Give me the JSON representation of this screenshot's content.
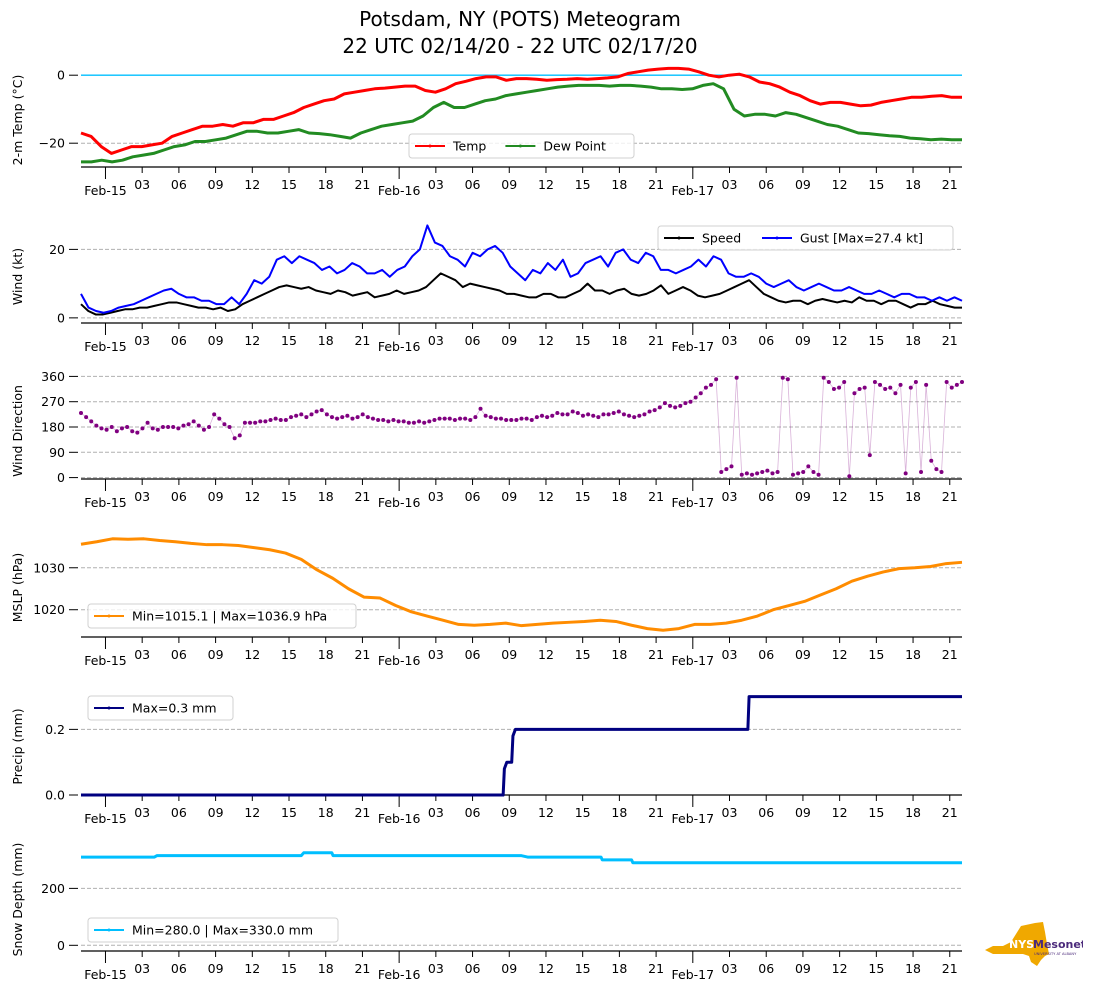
{
  "title_line1": "Potsdam, NY (POTS) Meteogram",
  "title_line2": "22 UTC 02/14/20 - 22 UTC 02/17/20",
  "logo": {
    "text_main": "NYS",
    "text_brand": "Mesonet",
    "text_sub": "UNIVERSITY AT ALBANY",
    "color_state": "#F0A800",
    "color_brand": "#4B2A7B"
  },
  "chart_data": [
    {
      "type": "line",
      "panel": "temperature",
      "ylabel": "2-m Temp ($^\\circ$C)",
      "ylabel_display": "2-m Temp (°C)",
      "ylim": [
        -27,
        3
      ],
      "yticks": [
        0,
        -20
      ],
      "ytick_labels": [
        "0",
        "−20"
      ],
      "grid_y": [
        -20
      ],
      "reference_line": {
        "y": 0,
        "color": "#00BFFF"
      },
      "x_hours_range": [
        0,
        72
      ],
      "x_start": "22 UTC 02/14/20",
      "xticks_hours": [
        2,
        5,
        8,
        11,
        14,
        17,
        20,
        23,
        26,
        29,
        32,
        35,
        38,
        41,
        44,
        47,
        50,
        53,
        56,
        59,
        62,
        65,
        68,
        71
      ],
      "xtick_labels": [
        "Feb-15",
        "03",
        "06",
        "09",
        "12",
        "15",
        "18",
        "21",
        "Feb-16",
        "03",
        "06",
        "09",
        "12",
        "15",
        "18",
        "21",
        "Feb-17",
        "03",
        "06",
        "09",
        "12",
        "15",
        "18",
        "21"
      ],
      "legend": {
        "placement": "lower-center",
        "ncol": 2,
        "entries": [
          "Temp",
          "Dew Point"
        ]
      },
      "x": [
        0,
        1,
        2,
        3,
        4,
        5,
        6,
        7,
        8,
        9,
        10,
        11,
        12,
        13,
        14,
        15,
        16,
        17,
        18,
        19,
        20,
        21,
        22,
        23,
        24,
        25,
        26,
        27,
        28,
        29,
        30,
        31,
        32,
        33,
        34,
        35,
        36,
        37,
        38,
        39,
        40,
        41,
        42,
        43,
        44,
        45,
        46,
        47,
        48,
        49,
        50,
        51,
        52,
        53,
        54,
        55,
        56,
        57,
        58,
        59,
        60,
        61,
        62,
        63,
        64,
        65,
        66,
        67,
        68,
        69,
        70,
        71,
        72
      ],
      "series": [
        {
          "name": "Temp",
          "color": "#FF0000",
          "values": [
            -17,
            -18,
            -21,
            -23,
            -22,
            -21,
            -21,
            -20.5,
            -20,
            -18,
            -17,
            -16,
            -15,
            -15,
            -14.5,
            -15,
            -14,
            -14,
            -13,
            -13,
            -12,
            -11,
            -9.5,
            -8.5,
            -7.5,
            -7,
            -5.5,
            -5,
            -4.5,
            -4,
            -3.8,
            -3.5,
            -3.2,
            -3.2,
            -4.5,
            -5,
            -4,
            -2.5,
            -1.8,
            -1,
            -0.5,
            -0.5,
            -1.5,
            -1,
            -1,
            -1.2,
            -1.5,
            -1.3,
            -1.2,
            -1,
            -1.2,
            -1,
            -0.8,
            -0.5,
            0.5,
            1,
            1.5,
            1.8,
            2,
            2,
            1.8,
            1,
            0,
            -0.5,
            0,
            0.3,
            -0.5,
            -2,
            -2.5,
            -3.5,
            -5,
            -6,
            -7.5,
            -8.5,
            -8,
            -8,
            -8.5,
            -9,
            -8.8,
            -8,
            -7.5,
            -7,
            -6.5,
            -6.5,
            -6.2,
            -6,
            -6.5,
            -6.5
          ],
          "sample_step_hours": 0.8333
        },
        {
          "name": "Dew Point",
          "color": "#228B22",
          "values": [
            -25.5,
            -25.5,
            -25,
            -25.5,
            -25,
            -24,
            -23.5,
            -23,
            -22,
            -21,
            -20.5,
            -19.5,
            -19.5,
            -19,
            -18.5,
            -17.5,
            -16.5,
            -16.5,
            -17,
            -17,
            -16.5,
            -16,
            -17,
            -17.2,
            -17.5,
            -18,
            -18.5,
            -17,
            -16,
            -15,
            -14.5,
            -14,
            -13.5,
            -12,
            -9.5,
            -8,
            -9.5,
            -9.5,
            -8.5,
            -7.5,
            -7,
            -6,
            -5.5,
            -5,
            -4.5,
            -4,
            -3.5,
            -3.2,
            -3,
            -3,
            -3,
            -3.2,
            -3,
            -3,
            -3.2,
            -3.5,
            -4,
            -4,
            -4.2,
            -4,
            -3,
            -2.5,
            -4,
            -10,
            -12,
            -11.5,
            -11.5,
            -12,
            -11,
            -11.5,
            -12.5,
            -13.5,
            -14.5,
            -15,
            -16,
            -17,
            -17.2,
            -17.5,
            -17.8,
            -18,
            -18.5,
            -18.7,
            -19,
            -18.8,
            -19,
            -19
          ],
          "sample_step_hours": 0.8333
        }
      ]
    },
    {
      "type": "line",
      "panel": "wind",
      "ylabel": "Wind (kt)",
      "ylim": [
        -1.5,
        28
      ],
      "yticks": [
        0,
        20
      ],
      "ytick_labels": [
        "0",
        "20"
      ],
      "grid_y": [
        0,
        20
      ],
      "legend": {
        "placement": "upper-right",
        "ncol": 2,
        "entries": [
          "Speed",
          "Gust [Max=27.4 kt]"
        ]
      },
      "series": [
        {
          "name": "Speed",
          "color": "#000000",
          "values": [
            4,
            2,
            1,
            1,
            1.5,
            2,
            2.5,
            2.5,
            3,
            3,
            3.5,
            4,
            4.5,
            4.5,
            4,
            3.5,
            3,
            3,
            2.5,
            3,
            2,
            2.5,
            4,
            5,
            6,
            7,
            8,
            9,
            9.5,
            9,
            8.5,
            9,
            8,
            7.5,
            7,
            8,
            7.5,
            6.5,
            7,
            7.5,
            6,
            6.5,
            7,
            8,
            7,
            7.5,
            8,
            9,
            11,
            13,
            12,
            11,
            9,
            10,
            9.5,
            9,
            8.5,
            8,
            7,
            7,
            6.5,
            6,
            6,
            7,
            7,
            6,
            6,
            7,
            8,
            10,
            8,
            8,
            7,
            8,
            8.5,
            7,
            6.5,
            7,
            8,
            9.5,
            7,
            8,
            9,
            8,
            6.5,
            6,
            6.5,
            7,
            8,
            9,
            10,
            11,
            9,
            7,
            6,
            5,
            4.5,
            5,
            5,
            4,
            5,
            5.5,
            5,
            4.5,
            5,
            4.5,
            6,
            5,
            5,
            4,
            5,
            5,
            4,
            3,
            4,
            4,
            5,
            4,
            3.5,
            3,
            3
          ],
          "sample_step_hours": 0.6
        },
        {
          "name": "Gust [Max=27.4 kt]",
          "color": "#0000FF",
          "values": [
            7,
            3,
            2,
            1.5,
            2,
            3,
            3.5,
            4,
            5,
            6,
            7,
            8,
            8.5,
            7,
            6,
            6,
            5,
            5,
            4,
            4,
            6,
            4,
            7,
            11,
            10,
            12,
            17,
            18,
            16,
            18,
            17,
            16,
            14,
            15,
            13,
            14,
            16,
            15,
            13,
            13,
            14,
            12,
            14,
            15,
            18,
            20,
            27,
            22,
            21,
            18,
            17,
            15,
            19,
            18,
            20,
            21,
            19,
            15,
            13,
            11,
            14,
            13,
            16,
            14,
            17,
            12,
            13,
            16,
            17,
            18,
            15,
            19,
            20,
            17,
            16,
            19,
            18,
            14,
            14,
            13,
            14,
            15,
            17,
            15,
            18,
            17,
            13,
            12,
            12,
            13,
            12,
            10,
            9,
            10,
            11,
            9,
            8,
            9,
            10,
            9,
            8,
            8,
            9,
            8,
            7,
            7,
            8,
            7,
            6,
            7,
            7,
            6,
            6,
            5,
            6,
            5,
            6,
            5
          ],
          "sample_step_hours": 0.6
        }
      ]
    },
    {
      "type": "scatter",
      "panel": "wind_direction",
      "ylabel": "Wind Direction",
      "ylim": [
        -5,
        365
      ],
      "yticks": [
        0,
        90,
        180,
        270,
        360
      ],
      "ytick_labels": [
        "0",
        "90",
        "180",
        "270",
        "360"
      ],
      "grid_y": [
        0,
        90,
        180,
        270,
        360
      ],
      "series": [
        {
          "name": "Wind Direction",
          "color": "#800080",
          "values": [
            230,
            215,
            200,
            185,
            175,
            170,
            180,
            165,
            175,
            180,
            165,
            160,
            175,
            195,
            175,
            170,
            180,
            180,
            180,
            175,
            185,
            190,
            200,
            185,
            170,
            180,
            225,
            210,
            190,
            180,
            140,
            150,
            195,
            195,
            195,
            200,
            200,
            205,
            210,
            205,
            205,
            215,
            220,
            225,
            215,
            225,
            235,
            240,
            225,
            215,
            210,
            215,
            220,
            210,
            215,
            225,
            215,
            210,
            205,
            205,
            200,
            205,
            200,
            200,
            195,
            195,
            200,
            195,
            200,
            205,
            210,
            210,
            210,
            205,
            210,
            210,
            205,
            215,
            245,
            220,
            215,
            210,
            210,
            205,
            205,
            205,
            210,
            210,
            205,
            215,
            220,
            215,
            220,
            230,
            225,
            225,
            235,
            230,
            220,
            225,
            220,
            215,
            225,
            225,
            230,
            235,
            225,
            220,
            215,
            220,
            225,
            235,
            240,
            250,
            265,
            255,
            250,
            255,
            265,
            270,
            285,
            300,
            320,
            330,
            350,
            20,
            30,
            40,
            355,
            10,
            15,
            10,
            15,
            20,
            25,
            15,
            20,
            355,
            350,
            10,
            15,
            20,
            40,
            20,
            10,
            355,
            340,
            315,
            320,
            340,
            5,
            300,
            315,
            320,
            80,
            340,
            330,
            315,
            320,
            300,
            330,
            15,
            320,
            340,
            20,
            330,
            60,
            30,
            20,
            340,
            320,
            330,
            340
          ],
          "sample_step_hours": 0.4
        }
      ]
    },
    {
      "type": "line",
      "panel": "mslp",
      "ylabel": "MSLP (hPa)",
      "ylim": [
        1013.5,
        1039
      ],
      "yticks": [
        1020,
        1030
      ],
      "ytick_labels": [
        "1020",
        "1030"
      ],
      "grid_y": [
        1020,
        1030
      ],
      "legend": {
        "placement": "lower-left",
        "entries": [
          "Min=1015.1 | Max=1036.9 hPa"
        ]
      },
      "series": [
        {
          "name": "Min=1015.1 | Max=1036.9 hPa",
          "color": "#FF8C00",
          "values": [
            1035.6,
            1036.2,
            1036.9,
            1036.8,
            1036.9,
            1036.5,
            1036.2,
            1035.8,
            1035.5,
            1035.5,
            1035.3,
            1034.8,
            1034.3,
            1033.5,
            1032.0,
            1029.5,
            1027.5,
            1025.0,
            1023.0,
            1022.8,
            1021.0,
            1019.5,
            1018.5,
            1017.5,
            1016.5,
            1016.3,
            1016.5,
            1016.8,
            1016.2,
            1016.5,
            1016.8,
            1017.0,
            1017.2,
            1017.5,
            1017.2,
            1016.3,
            1015.5,
            1015.1,
            1015.5,
            1016.5,
            1016.5,
            1016.8,
            1017.5,
            1018.5,
            1020.0,
            1021.0,
            1022.0,
            1023.5,
            1025.0,
            1026.8,
            1028.0,
            1029.0,
            1029.8,
            1030.0,
            1030.3,
            1031.0,
            1031.3
          ],
          "sample_step_hours": 1.2857
        }
      ]
    },
    {
      "type": "line",
      "panel": "precip",
      "ylabel": "Precip (mm)",
      "ylim": [
        0,
        0.32
      ],
      "yticks": [
        0.0,
        0.2
      ],
      "ytick_labels": [
        "0.0",
        "0.2"
      ],
      "grid_y": [
        0.0,
        0.2
      ],
      "legend": {
        "placement": "upper-left",
        "entries": [
          "Max=0.3 mm"
        ]
      },
      "series": [
        {
          "name": "Max=0.3 mm",
          "color": "#000080",
          "steps": [
            [
              0,
              0.0
            ],
            [
              34.5,
              0.0
            ],
            [
              34.6,
              0.08
            ],
            [
              34.8,
              0.1
            ],
            [
              35.2,
              0.1
            ],
            [
              35.3,
              0.18
            ],
            [
              35.5,
              0.2
            ],
            [
              54.5,
              0.2
            ],
            [
              54.6,
              0.3
            ],
            [
              72,
              0.3
            ]
          ]
        }
      ]
    },
    {
      "type": "line",
      "panel": "snow_depth",
      "ylabel": "Snow Depth (mm)",
      "ylim": [
        -20,
        370
      ],
      "yticks": [
        0,
        200
      ],
      "ytick_labels": [
        "0",
        "200"
      ],
      "grid_y": [
        0,
        200
      ],
      "legend": {
        "placement": "lower-left",
        "entries": [
          "Min=280.0 | Max=330.0 mm"
        ]
      },
      "series": [
        {
          "name": "Min=280.0 | Max=330.0 mm",
          "color": "#00BFFF",
          "steps": [
            [
              0,
              310
            ],
            [
              6,
              310
            ],
            [
              6.2,
              315
            ],
            [
              18,
              315
            ],
            [
              18.2,
              325
            ],
            [
              20.5,
              325
            ],
            [
              20.6,
              315
            ],
            [
              36,
              315
            ],
            [
              36.5,
              310
            ],
            [
              42.5,
              310
            ],
            [
              42.6,
              300
            ],
            [
              45,
              300
            ],
            [
              45.1,
              290
            ],
            [
              72,
              290
            ]
          ]
        }
      ]
    }
  ]
}
